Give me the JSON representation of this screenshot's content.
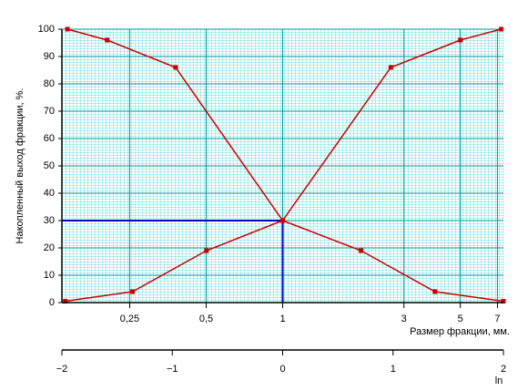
{
  "chart_data": {
    "type": "line",
    "x_label": "Размер фракции, мм.",
    "y_label": "Накопленный выход фракции, %.",
    "x_axis_name": "ln",
    "xlim": [
      -2,
      2
    ],
    "xticks": [
      {
        "value": -2,
        "label": "−2"
      },
      {
        "value": -1,
        "label": "−1"
      },
      0,
      1,
      2
    ],
    "x2lim": [
      0.1353,
      7.389
    ],
    "x2scale": "log",
    "x2ticks": [
      {
        "value": 0.25,
        "label": "0,25"
      },
      {
        "value": 0.5,
        "label": "0,5"
      },
      1,
      3,
      5,
      7
    ],
    "ylim": [
      0,
      100
    ],
    "yticks": [
      0,
      10,
      20,
      30,
      40,
      50,
      60,
      70,
      80,
      90,
      100
    ],
    "grid": true,
    "series": [
      {
        "color": "#cc0000",
        "x": [
          -1.95,
          -1.59,
          -0.97,
          0,
          0.71,
          1.38,
          2.0
        ],
        "values": [
          100,
          96,
          86,
          30,
          19,
          4,
          0.5
        ]
      },
      {
        "color": "#cc0000",
        "x": [
          -1.97,
          -1.36,
          -0.69,
          0,
          0.98,
          1.61,
          1.98
        ],
        "values": [
          0.5,
          4,
          19,
          30,
          86,
          96,
          100
        ]
      }
    ],
    "guide": {
      "x": 0,
      "y": 30,
      "color": "#0000cc"
    }
  }
}
